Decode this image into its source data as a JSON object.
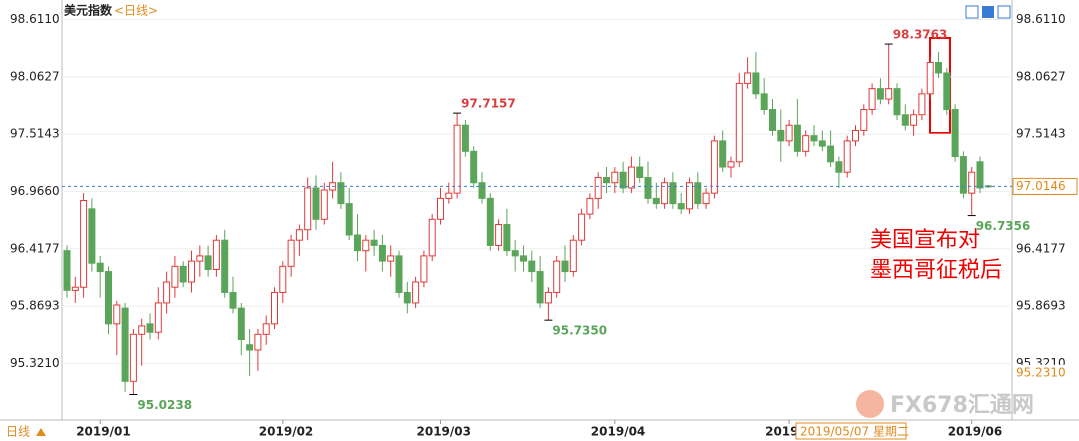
{
  "chart_data": {
    "type": "candlestick",
    "title": "美元指数",
    "subtitle": "<日线>",
    "period_label": "日线",
    "cursor_label": "2019/05/07 星期二",
    "watermark": "FX678汇通网",
    "annotation": [
      "美国宣布对",
      "墨西哥征税后"
    ],
    "up_color": "#e03a3a",
    "down_color": "#5aa55a",
    "ylim": [
      94.78,
      98.75
    ],
    "yticks": [
      {
        "value": 98.611,
        "label": "98.6110"
      },
      98.0627,
      97.5143,
      {
        "value": 96.966,
        "label": "96.9660"
      },
      96.4177,
      95.8693,
      {
        "value": 95.321,
        "label": "95.3210"
      }
    ],
    "price_markers": [
      97.0146,
      {
        "value": 95.231,
        "label": "95.2310"
      }
    ],
    "extremes": [
      95.0238,
      97.7157,
      {
        "value": 95.735,
        "label": "95.7350"
      },
      98.3763,
      96.7356
    ],
    "categories": [
      null,
      null,
      null,
      null,
      "2019/01",
      null,
      null,
      null,
      null,
      null,
      null,
      null,
      null,
      null,
      null,
      null,
      null,
      null,
      null,
      null,
      null,
      null,
      null,
      null,
      null,
      null,
      "2019/02",
      null,
      null,
      null,
      null,
      null,
      null,
      null,
      null,
      null,
      null,
      null,
      null,
      null,
      null,
      null,
      null,
      null,
      null,
      "2019/03",
      null,
      null,
      null,
      null,
      null,
      null,
      null,
      null,
      null,
      null,
      null,
      null,
      null,
      null,
      null,
      null,
      null,
      null,
      null,
      null,
      "2019/04",
      null,
      null,
      null,
      null,
      null,
      null,
      null,
      null,
      null,
      null,
      null,
      null,
      null,
      null,
      null,
      null,
      null,
      null,
      null,
      null,
      "2019/05",
      null,
      null,
      null,
      null,
      null,
      null,
      null,
      null,
      null,
      null,
      null,
      null,
      null,
      null,
      null,
      null,
      null,
      null,
      null,
      null,
      null,
      "2019/06",
      null,
      null
    ],
    "ohlc": [
      [
        96.4,
        96.45,
        95.95,
        96.02
      ],
      [
        96.02,
        96.15,
        95.9,
        96.05
      ],
      [
        96.05,
        96.95,
        95.95,
        96.88
      ],
      [
        96.8,
        96.9,
        96.2,
        96.28
      ],
      [
        96.28,
        96.35,
        95.95,
        96.2
      ],
      [
        96.2,
        96.25,
        95.6,
        95.7
      ],
      [
        95.7,
        95.92,
        95.4,
        95.88
      ],
      [
        95.85,
        95.9,
        95.05,
        95.15
      ],
      [
        95.15,
        95.65,
        95.0238,
        95.6
      ],
      [
        95.6,
        95.75,
        95.3,
        95.68
      ],
      [
        95.7,
        95.8,
        95.55,
        95.62
      ],
      [
        95.62,
        96.05,
        95.55,
        95.9
      ],
      [
        95.9,
        96.2,
        95.8,
        96.1
      ],
      [
        96.05,
        96.35,
        95.95,
        96.25
      ],
      [
        96.25,
        96.3,
        96.05,
        96.1
      ],
      [
        96.1,
        96.4,
        96.0,
        96.3
      ],
      [
        96.3,
        96.45,
        96.15,
        96.35
      ],
      [
        96.35,
        96.45,
        96.15,
        96.22
      ],
      [
        96.22,
        96.55,
        96.15,
        96.5
      ],
      [
        96.5,
        96.6,
        95.95,
        96.0
      ],
      [
        96.0,
        96.15,
        95.8,
        95.85
      ],
      [
        95.85,
        95.9,
        95.4,
        95.55
      ],
      [
        95.5,
        95.65,
        95.2,
        95.45
      ],
      [
        95.45,
        95.65,
        95.25,
        95.6
      ],
      [
        95.6,
        95.78,
        95.5,
        95.7
      ],
      [
        95.7,
        96.05,
        95.65,
        96.0
      ],
      [
        96.0,
        96.3,
        95.9,
        96.25
      ],
      [
        96.25,
        96.55,
        96.15,
        96.5
      ],
      [
        96.5,
        96.65,
        96.35,
        96.6
      ],
      [
        96.6,
        97.1,
        96.5,
        97.0
      ],
      [
        97.0,
        97.12,
        96.6,
        96.7
      ],
      [
        96.7,
        97.05,
        96.65,
        96.98
      ],
      [
        96.98,
        97.25,
        96.9,
        97.05
      ],
      [
        97.05,
        97.15,
        96.8,
        96.85
      ],
      [
        96.85,
        97.0,
        96.5,
        96.55
      ],
      [
        96.55,
        96.75,
        96.3,
        96.4
      ],
      [
        96.4,
        96.55,
        96.2,
        96.5
      ],
      [
        96.5,
        96.6,
        96.35,
        96.45
      ],
      [
        96.45,
        96.55,
        96.2,
        96.3
      ],
      [
        96.3,
        96.45,
        96.15,
        96.35
      ],
      [
        96.35,
        96.4,
        95.95,
        96.0
      ],
      [
        96.0,
        96.1,
        95.8,
        95.9
      ],
      [
        95.9,
        96.15,
        95.85,
        96.1
      ],
      [
        96.1,
        96.4,
        96.05,
        96.35
      ],
      [
        96.35,
        96.75,
        96.3,
        96.7
      ],
      [
        96.7,
        97.0,
        96.65,
        96.9
      ],
      [
        96.9,
        97.05,
        96.85,
        96.95
      ],
      [
        96.95,
        97.7157,
        96.9,
        97.6
      ],
      [
        97.6,
        97.65,
        97.3,
        97.35
      ],
      [
        97.35,
        97.4,
        97.0,
        97.05
      ],
      [
        97.05,
        97.15,
        96.85,
        96.9
      ],
      [
        96.9,
        96.95,
        96.4,
        96.45
      ],
      [
        96.45,
        96.7,
        96.4,
        96.65
      ],
      [
        96.65,
        96.8,
        96.35,
        96.4
      ],
      [
        96.4,
        96.5,
        96.2,
        96.35
      ],
      [
        96.35,
        96.45,
        96.2,
        96.3
      ],
      [
        96.3,
        96.4,
        96.1,
        96.2
      ],
      [
        96.2,
        96.35,
        95.85,
        95.9
      ],
      [
        95.9,
        96.05,
        95.735,
        96.0
      ],
      [
        96.0,
        96.35,
        95.95,
        96.3
      ],
      [
        96.3,
        96.45,
        96.1,
        96.2
      ],
      [
        96.2,
        96.55,
        96.15,
        96.5
      ],
      [
        96.5,
        96.8,
        96.45,
        96.75
      ],
      [
        96.75,
        96.95,
        96.7,
        96.9
      ],
      [
        96.9,
        97.15,
        96.8,
        97.1
      ],
      [
        97.1,
        97.2,
        96.95,
        97.05
      ],
      [
        97.05,
        97.2,
        96.95,
        97.15
      ],
      [
        97.15,
        97.25,
        96.95,
        97.0
      ],
      [
        97.0,
        97.3,
        96.95,
        97.2
      ],
      [
        97.2,
        97.3,
        97.05,
        97.1
      ],
      [
        97.1,
        97.25,
        96.85,
        96.9
      ],
      [
        96.9,
        97.05,
        96.8,
        96.85
      ],
      [
        96.85,
        97.1,
        96.8,
        97.05
      ],
      [
        97.05,
        97.15,
        96.8,
        96.85
      ],
      [
        96.85,
        96.95,
        96.75,
        96.8
      ],
      [
        96.8,
        97.1,
        96.75,
        97.05
      ],
      [
        97.05,
        97.15,
        96.8,
        96.85
      ],
      [
        96.85,
        97.0,
        96.8,
        96.95
      ],
      [
        96.95,
        97.5,
        96.9,
        97.45
      ],
      [
        97.45,
        97.55,
        97.15,
        97.2
      ],
      [
        97.2,
        97.3,
        97.1,
        97.25
      ],
      [
        97.25,
        98.1,
        97.2,
        98.0
      ],
      [
        98.0,
        98.25,
        97.95,
        98.1
      ],
      [
        98.1,
        98.3,
        97.85,
        97.9
      ],
      [
        97.9,
        98.05,
        97.7,
        97.75
      ],
      [
        97.75,
        97.85,
        97.5,
        97.55
      ],
      [
        97.55,
        97.75,
        97.25,
        97.45
      ],
      [
        97.45,
        97.65,
        97.4,
        97.6
      ],
      [
        97.6,
        97.85,
        97.3,
        97.35
      ],
      [
        97.35,
        97.55,
        97.3,
        97.5
      ],
      [
        97.5,
        97.6,
        97.4,
        97.45
      ],
      [
        97.45,
        97.55,
        97.35,
        97.4
      ],
      [
        97.4,
        97.55,
        97.2,
        97.25
      ],
      [
        97.25,
        97.3,
        97.0,
        97.15
      ],
      [
        97.15,
        97.5,
        97.1,
        97.45
      ],
      [
        97.45,
        97.6,
        97.4,
        97.55
      ],
      [
        97.55,
        97.8,
        97.5,
        97.75
      ],
      [
        97.75,
        98.0,
        97.7,
        97.95
      ],
      [
        97.95,
        98.05,
        97.8,
        97.85
      ],
      [
        97.85,
        98.3763,
        97.8,
        97.95
      ],
      [
        97.95,
        98.0,
        97.65,
        97.7
      ],
      [
        97.7,
        97.8,
        97.55,
        97.6
      ],
      [
        97.6,
        97.75,
        97.5,
        97.7
      ],
      [
        97.7,
        97.95,
        97.65,
        97.9
      ],
      [
        97.9,
        98.25,
        97.85,
        98.2
      ],
      [
        98.2,
        98.3,
        98.05,
        98.1
      ],
      [
        98.1,
        98.15,
        97.7,
        97.75
      ],
      [
        97.75,
        97.8,
        97.25,
        97.3
      ],
      [
        97.3,
        97.35,
        96.9,
        96.95
      ],
      [
        96.95,
        97.2,
        96.7356,
        97.15
      ],
      [
        97.25,
        97.3,
        96.95,
        97.0
      ],
      [
        97.02,
        97.03,
        97.0,
        97.0146
      ]
    ]
  }
}
